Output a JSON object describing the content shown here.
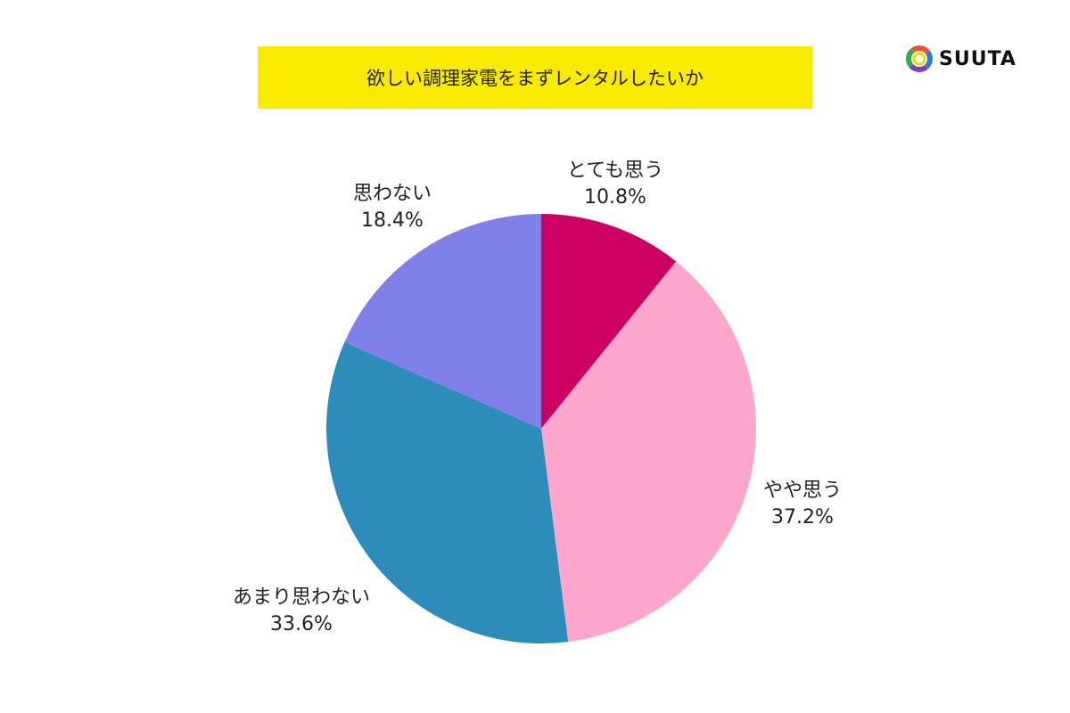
{
  "logo": {
    "text": "SUUTA"
  },
  "chart_data": {
    "type": "pie",
    "title": "欲しい調理家電をまずレンタルしたいか",
    "start_angle": "12 o'clock",
    "direction": "clockwise",
    "slices": [
      {
        "label": "とても思う",
        "value": 10.8,
        "display": "10.8%",
        "color": "#cc0060"
      },
      {
        "label": "やや思う",
        "value": 37.2,
        "display": "37.2%",
        "color": "#ffa6cc"
      },
      {
        "label": "あまり思わない",
        "value": 33.6,
        "display": "33.6%",
        "color": "#2e8cba"
      },
      {
        "label": "思わない",
        "value": 18.4,
        "display": "18.4%",
        "color": "#8080e8"
      }
    ]
  }
}
